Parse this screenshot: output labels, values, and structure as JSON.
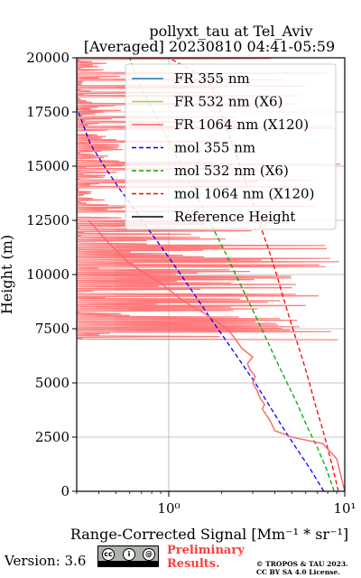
{
  "chart_data": {
    "type": "line",
    "title_line1": "pollyxt_tau at Tel_Aviv",
    "title_line2": "[Averaged] 20230810 04:41-05:59",
    "xlabel": "Range-Corrected Signal [Mm⁻¹ * sr⁻¹]",
    "ylabel": "Height (m)",
    "xscale": "log",
    "xlim": [
      0.3,
      10
    ],
    "ylim": [
      0,
      20000
    ],
    "x_tick_labels": [
      "10⁰",
      "10¹"
    ],
    "x_major_ticks": [
      1,
      10
    ],
    "y_ticks": [
      0,
      2500,
      5000,
      7500,
      10000,
      12500,
      15000,
      17500,
      20000
    ],
    "y_tick_labels": [
      "0",
      "2500",
      "5000",
      "7500",
      "10000",
      "12500",
      "15000",
      "17500",
      "20000"
    ],
    "grid": true,
    "legend_position": "top-right",
    "legend": [
      {
        "label": "FR 355 nm",
        "color": "#1f77b4",
        "style": "solid"
      },
      {
        "label": "FR 532 nm (X6)",
        "color": "#a0d232",
        "style": "solid"
      },
      {
        "label": "FR 1064 nm (X120)",
        "color": "#ff6464",
        "style": "solid"
      },
      {
        "label": "mol 355 nm",
        "color": "#0000ff",
        "style": "dashed"
      },
      {
        "label": "mol 532 nm (X6)",
        "color": "#00aa00",
        "style": "dashed"
      },
      {
        "label": "mol 1064 nm (X120)",
        "color": "#ff0000",
        "style": "dashed"
      },
      {
        "label": "Reference Height",
        "color": "#000000",
        "style": "solid"
      }
    ],
    "series": [
      {
        "name": "mol 355 nm",
        "color": "#0000ff",
        "style": "dashed",
        "x": [
          7.6,
          6.4,
          5.3,
          4.4,
          3.7,
          3.1,
          2.55,
          2.1,
          1.72,
          1.42,
          1.17,
          0.96,
          0.78,
          0.64,
          0.52,
          0.43,
          0.36,
          0.3
        ],
        "y": [
          0,
          1000,
          2000,
          3000,
          4000,
          5000,
          6000,
          7000,
          8000,
          9000,
          10000,
          11000,
          12000,
          13000,
          14000,
          15000,
          16000,
          17700
        ]
      },
      {
        "name": "mol 532 nm (X6)",
        "color": "#00aa00",
        "style": "dashed",
        "x": [
          8.7,
          7.9,
          7.0,
          6.1,
          5.4,
          4.7,
          4.1,
          3.6,
          3.15,
          2.75,
          2.4,
          2.1,
          1.82,
          1.58,
          1.37,
          1.18,
          1.02,
          0.88,
          0.76,
          0.66,
          0.6
        ],
        "y": [
          0,
          1000,
          2000,
          3000,
          4000,
          5000,
          6000,
          7000,
          8000,
          9000,
          10000,
          11000,
          12000,
          13000,
          14000,
          15000,
          16000,
          17000,
          18000,
          19000,
          20000
        ]
      },
      {
        "name": "mol 1064 nm (X120)",
        "color": "#ff0000",
        "style": "dashed",
        "x": [
          9.2,
          8.6,
          8.0,
          7.4,
          6.8,
          6.3,
          5.8,
          5.3,
          4.85,
          4.45,
          4.1,
          3.75,
          3.4,
          3.1,
          2.8,
          2.55,
          2.3,
          2.08,
          1.88,
          1.7,
          1.0
        ],
        "y": [
          0,
          1000,
          2000,
          3000,
          4000,
          5000,
          6000,
          7000,
          8000,
          9000,
          10000,
          11000,
          12000,
          13000,
          14000,
          15000,
          16000,
          17000,
          18000,
          19000,
          20000
        ]
      },
      {
        "name": "FR 1064 nm (X120)",
        "color": "#ff6464",
        "style": "solid",
        "x": [
          10.0,
          9.0,
          7.5,
          5.0,
          4.0,
          3.8,
          3.6,
          3.4,
          3.5,
          3.3,
          3.2,
          3.0,
          3.1,
          2.9,
          2.8,
          3.0,
          2.6,
          2.4,
          2.2,
          1.9,
          1.6,
          1.2,
          0.9,
          0.6,
          0.45,
          0.35
        ],
        "y": [
          0,
          1500,
          2200,
          2500,
          2800,
          3200,
          3500,
          3800,
          4000,
          4300,
          4600,
          5000,
          5300,
          5600,
          5900,
          6200,
          6600,
          7000,
          7400,
          7800,
          8200,
          8800,
          9600,
          10500,
          11500,
          12500
        ]
      }
    ]
  },
  "footer": {
    "version": "Version: 3.6",
    "license_logo": "CC BY SA",
    "prelim_line1": "Preliminary",
    "prelim_line2": "Results.",
    "credit_line1": "© TROPOS & TAU 2023.",
    "credit_line2": "CC BY SA 4.0 License."
  }
}
